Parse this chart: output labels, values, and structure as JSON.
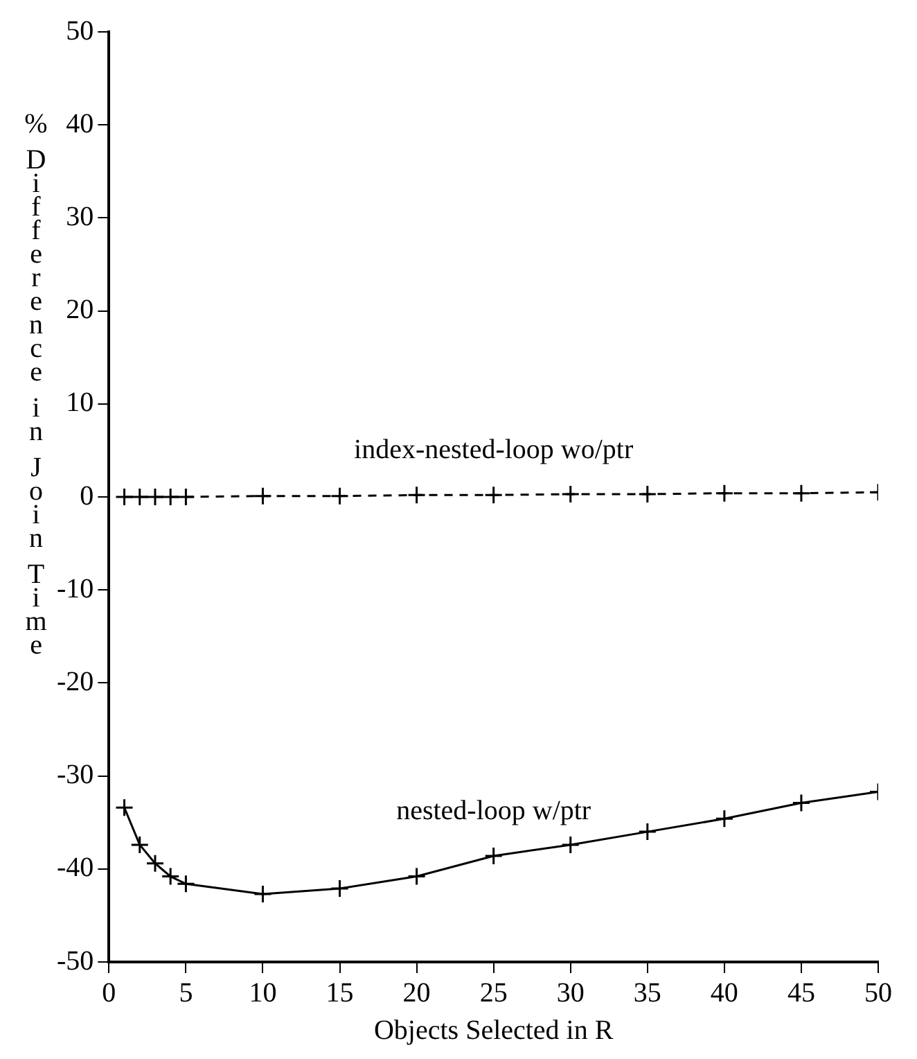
{
  "chart_data": {
    "type": "line",
    "xlabel": "Objects Selected in R",
    "ylabel": "% Difference in Join Time",
    "xlim": [
      0,
      50
    ],
    "xticks": [
      0,
      5,
      10,
      15,
      20,
      25,
      30,
      35,
      40,
      45,
      50
    ],
    "ylim": [
      -50,
      50
    ],
    "yticks": [
      -50,
      -40,
      -30,
      -20,
      -10,
      0,
      10,
      20,
      30,
      40,
      50
    ],
    "grid": false,
    "marker": "cross",
    "series": [
      {
        "name": "index-nested-loop wo/ptr",
        "color": "#000000",
        "line_style": "dashed",
        "x": [
          1,
          2,
          3,
          4,
          5,
          10,
          15,
          20,
          25,
          30,
          35,
          40,
          45,
          50
        ],
        "values": [
          0,
          0,
          0,
          0,
          0,
          0.1,
          0.1,
          0.2,
          0.2,
          0.3,
          0.3,
          0.4,
          0.4,
          0.5
        ]
      },
      {
        "name": "nested-loop w/ptr",
        "color": "#000000",
        "line_style": "solid",
        "x": [
          1,
          2,
          3,
          4,
          5,
          10,
          15,
          20,
          25,
          30,
          35,
          40,
          45,
          50
        ],
        "values": [
          -33.4,
          -37.4,
          -39.4,
          -40.8,
          -41.6,
          -42.7,
          -42.1,
          -40.8,
          -38.6,
          -37.4,
          -36.0,
          -34.6,
          -32.9,
          -31.7
        ]
      }
    ]
  }
}
